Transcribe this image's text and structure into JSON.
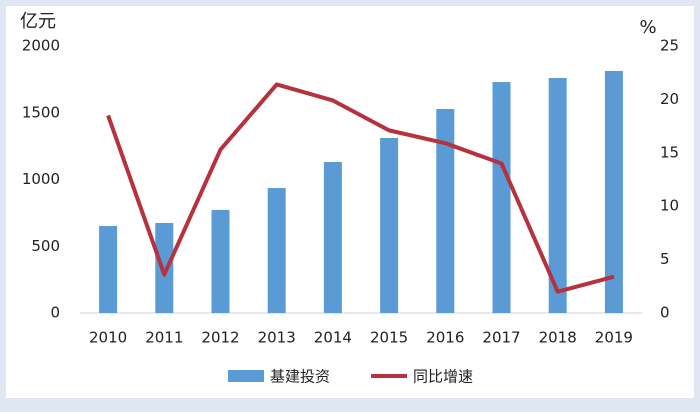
{
  "chart_data": {
    "type": "bar",
    "categories": [
      "2010",
      "2011",
      "2012",
      "2013",
      "2014",
      "2015",
      "2016",
      "2017",
      "2018",
      "2019"
    ],
    "series": [
      {
        "name": "基建投资",
        "color": "#5b9bd5",
        "type": "bar",
        "values": [
          652,
          674,
          772,
          936,
          1131,
          1311,
          1528,
          1730,
          1760,
          1813
        ]
      },
      {
        "name": "同比增速",
        "color": "#b5323e",
        "type": "line",
        "axis": "y2",
        "values": [
          18.5,
          3.6,
          15.3,
          21.4,
          19.9,
          17.1,
          15.9,
          14.0,
          2.0,
          3.4
        ]
      }
    ],
    "ylabel": "亿元",
    "y2label": "%",
    "ylim": [
      0,
      2000
    ],
    "yticks": [
      0,
      500,
      1000,
      1500,
      2000
    ],
    "y2lim": [
      0,
      25
    ],
    "y2ticks": [
      0,
      5,
      10,
      15,
      20,
      25
    ],
    "grid": false,
    "legend": "bottom"
  }
}
